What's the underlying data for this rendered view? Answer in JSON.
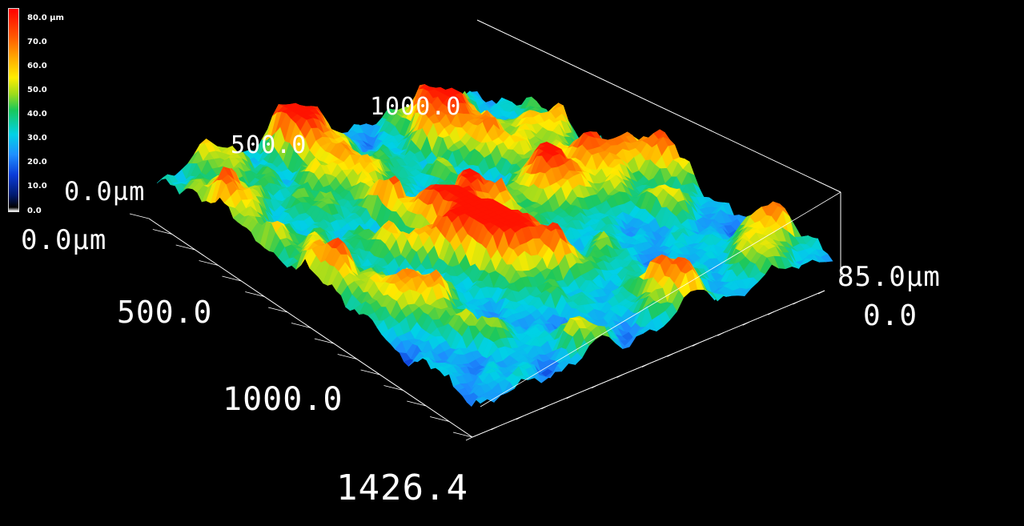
{
  "colorbar": {
    "labels": [
      "80.0 µm",
      "70.0",
      "60.0",
      "50.0",
      "40.0",
      "30.0",
      "20.0",
      "10.0",
      "0.0"
    ],
    "min": 0.0,
    "max": 80.0,
    "unit": "µm"
  },
  "axes": {
    "x_origin": "0.0µm",
    "x_mid": "500.0",
    "x_far": "1000.0",
    "x_max": "1426.4",
    "y_origin": "0.0µm",
    "y_mid": "500.0",
    "y_far": "1000.0",
    "z_max": "85.0µm",
    "z_min": "0.0"
  },
  "colors": {
    "background": "#000000",
    "axis_line": "#ffffff",
    "label": "#ffffff"
  },
  "chart_data": {
    "type": "heatmap",
    "subtype": "3d-surface",
    "x_range": [
      0.0,
      1426.4
    ],
    "y_range": [
      0.0,
      1000.0
    ],
    "z_range": [
      0.0,
      85.0
    ],
    "color_range": [
      0.0,
      80.0
    ],
    "x_ticks": [
      "0.0µm",
      "500.0",
      "1000.0",
      "1426.4"
    ],
    "y_ticks": [
      "0.0µm",
      "500.0",
      "1000.0"
    ],
    "z_ticks": [
      "0.0",
      "85.0µm"
    ],
    "grid": true,
    "legend": "top-left colorbar"
  }
}
